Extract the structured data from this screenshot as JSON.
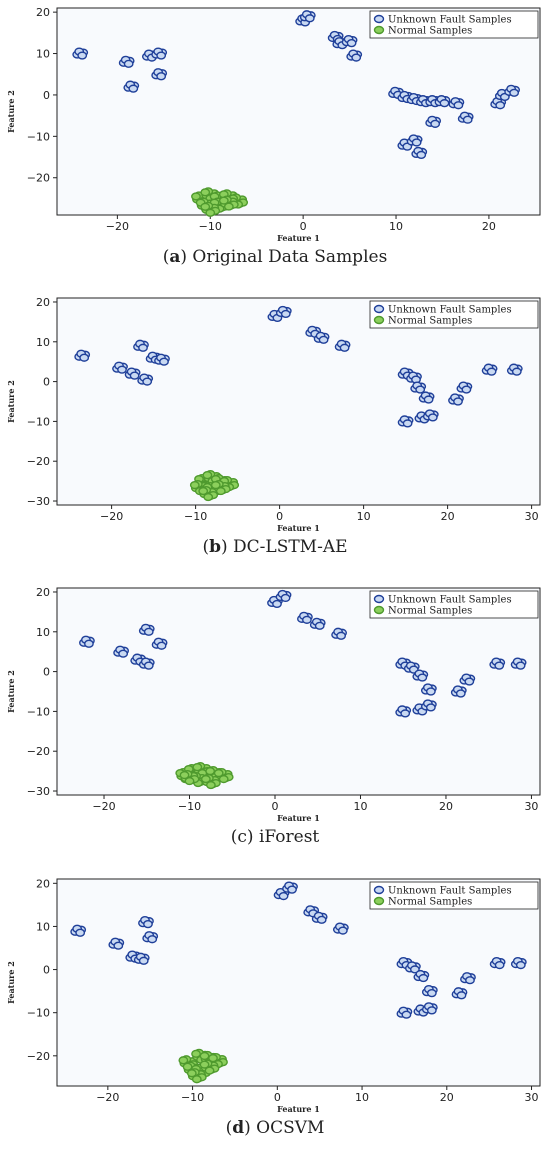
{
  "colors": {
    "fault_fill": "#c9d9f2",
    "fault_stroke": "#1f3f99",
    "normal_fill": "#8ccf5c",
    "normal_stroke": "#4f9a2e",
    "plot_bg": "#f8fafd"
  },
  "chart_data": [
    {
      "type": "scatter",
      "caption_label": "a",
      "caption_paren_open": "(",
      "caption_paren_close": ")",
      "caption_text": " Original Data Samples",
      "xlabel": "Feature 1",
      "ylabel": "Feature 2",
      "xlim": [
        -26.5,
        25.5
      ],
      "ylim": [
        -29,
        21
      ],
      "xticks": [
        -20,
        -10,
        0,
        10,
        20
      ],
      "yticks": [
        -20,
        -10,
        0,
        10,
        20
      ],
      "legend_position": "top-right",
      "series": [
        {
          "name": "Unknown Fault Samples",
          "points": [
            [
              -24,
              10
            ],
            [
              -19,
              8
            ],
            [
              -18.5,
              2
            ],
            [
              -16.5,
              9.5
            ],
            [
              -15.5,
              10
            ],
            [
              -15.5,
              5
            ],
            [
              0,
              18
            ],
            [
              0.5,
              19
            ],
            [
              3.5,
              14
            ],
            [
              4,
              12.5
            ],
            [
              5,
              13
            ],
            [
              5.5,
              9.5
            ],
            [
              10,
              0.5
            ],
            [
              11,
              -0.5
            ],
            [
              12,
              -1
            ],
            [
              13,
              -1.5
            ],
            [
              14,
              -1.5
            ],
            [
              14,
              -6.5
            ],
            [
              15,
              -1.5
            ],
            [
              16.5,
              -2
            ],
            [
              17.5,
              -5.5
            ],
            [
              11,
              -12
            ],
            [
              12,
              -11
            ],
            [
              12.5,
              -14
            ],
            [
              21,
              -2
            ],
            [
              21.5,
              0
            ],
            [
              22.5,
              1
            ]
          ]
        },
        {
          "name": "Normal Samples",
          "points": [
            [
              -11,
              -25
            ],
            [
              -10,
              -24
            ],
            [
              -9,
              -25
            ],
            [
              -8,
              -24.5
            ],
            [
              -7,
              -25.5
            ],
            [
              -10.5,
              -26.5
            ],
            [
              -9,
              -26.5
            ],
            [
              -8,
              -26
            ],
            [
              -10,
              -27.5
            ]
          ]
        }
      ]
    },
    {
      "type": "scatter",
      "caption_label": "b",
      "caption_paren_open": "(",
      "caption_paren_close": ")",
      "caption_text": " DC-LSTM-AE",
      "xlabel": "Feature 1",
      "ylabel": "Feature 2",
      "xlim": [
        -26.5,
        31
      ],
      "ylim": [
        -31,
        21
      ],
      "xticks": [
        -20,
        -10,
        0,
        10,
        20,
        30
      ],
      "yticks": [
        -30,
        -20,
        -10,
        0,
        10,
        20
      ],
      "legend_position": "top-right",
      "series": [
        {
          "name": "Unknown Fault Samples",
          "points": [
            [
              -23.5,
              6.5
            ],
            [
              -19,
              3.5
            ],
            [
              -16.5,
              9
            ],
            [
              -17.5,
              2
            ],
            [
              -16,
              0.5
            ],
            [
              -15,
              6
            ],
            [
              -14,
              5.5
            ],
            [
              -0.5,
              16.5
            ],
            [
              0.5,
              17.5
            ],
            [
              4,
              12.5
            ],
            [
              5,
              11
            ],
            [
              7.5,
              9
            ],
            [
              15,
              2
            ],
            [
              16,
              1
            ],
            [
              16.5,
              -1.5
            ],
            [
              17.5,
              -4
            ],
            [
              15,
              -10
            ],
            [
              17,
              -9
            ],
            [
              18,
              -8.5
            ],
            [
              21,
              -4.5
            ],
            [
              22,
              -1.5
            ],
            [
              25,
              3
            ],
            [
              28,
              3
            ]
          ]
        },
        {
          "name": "Normal Samples",
          "points": [
            [
              -9,
              -25
            ],
            [
              -8,
              -24
            ],
            [
              -7,
              -25
            ],
            [
              -6,
              -25.5
            ],
            [
              -9.5,
              -26.5
            ],
            [
              -8,
              -27
            ],
            [
              -7,
              -26.5
            ],
            [
              -8.5,
              -28
            ]
          ]
        }
      ]
    },
    {
      "type": "scatter",
      "caption_label": "c",
      "caption_paren_open": "(",
      "caption_paren_close": ")",
      "caption_text": " iForest",
      "xlabel": "Feature 1",
      "ylabel": "Feature 2",
      "xlim": [
        -25.5,
        31
      ],
      "ylim": [
        -31,
        21
      ],
      "xticks": [
        -20,
        -10,
        0,
        10,
        20,
        30
      ],
      "yticks": [
        -30,
        -20,
        -10,
        0,
        10,
        20
      ],
      "legend_position": "top-right",
      "series": [
        {
          "name": "Unknown Fault Samples",
          "points": [
            [
              -22,
              7.5
            ],
            [
              -18,
              5
            ],
            [
              -15,
              10.5
            ],
            [
              -16,
              3
            ],
            [
              -15,
              2
            ],
            [
              -13.5,
              7
            ],
            [
              0,
              17.5
            ],
            [
              1,
              19
            ],
            [
              3.5,
              13.5
            ],
            [
              5,
              12
            ],
            [
              7.5,
              9.5
            ],
            [
              15,
              2
            ],
            [
              16,
              1
            ],
            [
              17,
              -1
            ],
            [
              18,
              -4.5
            ],
            [
              15,
              -10
            ],
            [
              17,
              -9.5
            ],
            [
              18,
              -8.5
            ],
            [
              21.5,
              -5
            ],
            [
              22.5,
              -2
            ],
            [
              26,
              2
            ],
            [
              28.5,
              2
            ]
          ]
        },
        {
          "name": "Normal Samples",
          "points": [
            [
              -10.5,
              -26
            ],
            [
              -9.5,
              -25
            ],
            [
              -8.5,
              -24.5
            ],
            [
              -7,
              -25.5
            ],
            [
              -6,
              -26
            ],
            [
              -9,
              -27
            ],
            [
              -7.5,
              -27.5
            ],
            [
              -10,
              -26.5
            ]
          ]
        }
      ]
    },
    {
      "type": "scatter",
      "caption_label": "d",
      "caption_paren_open": "(",
      "caption_paren_close": ")",
      "caption_text": " OCSVM",
      "xlabel": "Feature 1",
      "ylabel": "Feature 2",
      "xlim": [
        -26,
        31
      ],
      "ylim": [
        -27,
        21
      ],
      "xticks": [
        -20,
        -10,
        0,
        10,
        20,
        30
      ],
      "yticks": [
        -20,
        -10,
        0,
        10,
        20
      ],
      "legend_position": "top-right",
      "series": [
        {
          "name": "Unknown Fault Samples",
          "points": [
            [
              -23.5,
              9
            ],
            [
              -19,
              6
            ],
            [
              -15.5,
              11
            ],
            [
              -17,
              3
            ],
            [
              -16,
              2.5
            ],
            [
              -15,
              7.5
            ],
            [
              0.5,
              17.5
            ],
            [
              1.5,
              19
            ],
            [
              4,
              13.5
            ],
            [
              5,
              12
            ],
            [
              7.5,
              9.5
            ],
            [
              15,
              1.5
            ],
            [
              16,
              0.5
            ],
            [
              17,
              -1.5
            ],
            [
              18,
              -5
            ],
            [
              15,
              -10
            ],
            [
              17,
              -9.5
            ],
            [
              18,
              -9
            ],
            [
              21.5,
              -5.5
            ],
            [
              22.5,
              -2
            ],
            [
              26,
              1.5
            ],
            [
              28.5,
              1.5
            ]
          ]
        },
        {
          "name": "Normal Samples",
          "points": [
            [
              -10.5,
              -21.5
            ],
            [
              -9,
              -20
            ],
            [
              -8,
              -20.5
            ],
            [
              -7,
              -21
            ],
            [
              -10,
              -23
            ],
            [
              -9,
              -23.5
            ],
            [
              -8,
              -22.5
            ],
            [
              -9.5,
              -24.5
            ]
          ]
        }
      ]
    }
  ]
}
